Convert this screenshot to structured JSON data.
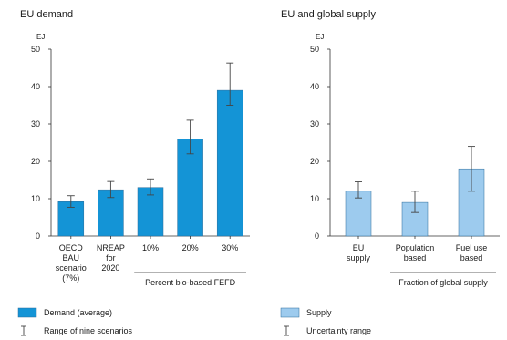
{
  "chart_data": [
    {
      "type": "bar",
      "title": "EU demand",
      "ylabel": "EJ",
      "ylim": [
        0,
        50
      ],
      "yticks": [
        0,
        10,
        20,
        30,
        40,
        50
      ],
      "categories": [
        [
          "OECD",
          "BAU",
          "scenario",
          "(7%)"
        ],
        [
          "NREAP",
          "for",
          "2020"
        ],
        [
          "10%"
        ],
        [
          "20%"
        ],
        [
          "30%"
        ]
      ],
      "values": [
        9.2,
        12.4,
        13.0,
        26.0,
        39.0
      ],
      "error_low": [
        7.7,
        10.3,
        11.0,
        22.0,
        35.0
      ],
      "error_high": [
        10.8,
        14.6,
        15.3,
        31.0,
        46.3
      ],
      "group_label": {
        "text": "Percent bio-based FEFD",
        "from": 2,
        "to": 4
      },
      "color": "#1494d6",
      "grid": false
    },
    {
      "type": "bar",
      "title": "EU and global supply",
      "ylabel": "EJ",
      "ylim": [
        0,
        50
      ],
      "yticks": [
        0,
        10,
        20,
        30,
        40,
        50
      ],
      "categories": [
        [
          "EU",
          "supply"
        ],
        [
          "Population",
          "based"
        ],
        [
          "Fuel use",
          "based"
        ]
      ],
      "values": [
        12.0,
        9.0,
        18.0
      ],
      "error_low": [
        10.2,
        6.3,
        12.0
      ],
      "error_high": [
        14.5,
        12.0,
        24.0
      ],
      "group_label": {
        "text": "Fraction of global supply",
        "from": 1,
        "to": 2
      },
      "color": "#9dcbee",
      "grid": false
    }
  ],
  "legend": {
    "left": [
      {
        "label": "Demand (average)",
        "kind": "swatch",
        "color": "#1494d6"
      },
      {
        "label": "Range of nine scenarios",
        "kind": "errorbar"
      }
    ],
    "right": [
      {
        "label": "Supply",
        "kind": "swatch",
        "color": "#9dcbee"
      },
      {
        "label": "Uncertainty range",
        "kind": "errorbar"
      }
    ]
  }
}
